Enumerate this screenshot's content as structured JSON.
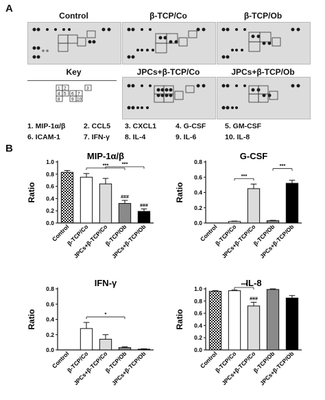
{
  "panel_a_label": "A",
  "panel_b_label": "B",
  "blots": [
    {
      "title": "Control"
    },
    {
      "title": "β-TCP/Co"
    },
    {
      "title": "β-TCP/Ob"
    },
    {
      "title": "Key"
    },
    {
      "title": "JPCs+β-TCP/Co"
    },
    {
      "title": "JPCs+β-TCP/Ob"
    }
  ],
  "key_labels": [
    "1",
    "2",
    "3",
    "4",
    "5",
    "6",
    "7",
    "8",
    "9",
    "10"
  ],
  "legend": [
    [
      "1. MIP-1α/β",
      "2. CCL5",
      "3. CXCL1",
      "4. G-CSF",
      "5. GM-CSF"
    ],
    [
      "6. ICAM-1",
      "7. IFN-γ",
      "8. IL-4",
      "9. IL-6",
      "10. IL-8"
    ]
  ],
  "chart_data": [
    {
      "type": "bar",
      "title": "MIP-1α/β",
      "ylabel": "Ratio",
      "ylim": [
        0,
        1.0
      ],
      "yticks": [
        "0.0",
        "0.2",
        "0.4",
        "0.6",
        "0.8",
        "1.0"
      ],
      "categories": [
        "Control",
        "β-TCP/Co",
        "JPCs+β-TCP/Co",
        "β-TCP/Ob",
        "JPCs+β-TCP/Ob"
      ],
      "values": [
        0.83,
        0.75,
        0.64,
        0.32,
        0.19
      ],
      "errors": [
        0.03,
        0.06,
        0.09,
        0.05,
        0.04
      ],
      "annotations": [
        "",
        "",
        "",
        "###",
        "###"
      ],
      "significance": [
        {
          "from": 1,
          "to": 3,
          "label": "***"
        },
        {
          "from": 2,
          "to": 4,
          "label": "***"
        }
      ]
    },
    {
      "type": "bar",
      "title": "G-CSF",
      "ylabel": "Ratio",
      "ylim": [
        0,
        0.8
      ],
      "yticks": [
        "0.0",
        "0.2",
        "0.4",
        "0.6",
        "0.8"
      ],
      "categories": [
        "Control",
        "β-TCP/Co",
        "JPCs+β-TCP/Co",
        "β-TCP/Ob",
        "JPCs+β-TCP/Ob"
      ],
      "values": [
        0.0,
        0.02,
        0.45,
        0.03,
        0.52
      ],
      "errors": [
        0.0,
        0.005,
        0.06,
        0.005,
        0.04
      ],
      "annotations": [
        "",
        "",
        "",
        "",
        ""
      ],
      "significance": [
        {
          "from": 1,
          "to": 2,
          "label": "***"
        },
        {
          "from": 3,
          "to": 4,
          "label": "***"
        }
      ]
    },
    {
      "type": "bar",
      "title": "IFN-γ",
      "ylabel": "Ratio",
      "ylim": [
        0,
        0.8
      ],
      "yticks": [
        "0.0",
        "0.2",
        "0.4",
        "0.6",
        "0.8"
      ],
      "categories": [
        "Control",
        "β-TCP/Co",
        "JPCs+β-TCP/Co",
        "β-TCP/Ob",
        "JPCs+β-TCP/Ob"
      ],
      "values": [
        0.0,
        0.28,
        0.14,
        0.03,
        0.01
      ],
      "errors": [
        0.0,
        0.08,
        0.06,
        0.01,
        0.005
      ],
      "annotations": [
        "",
        "",
        "",
        "",
        ""
      ],
      "significance": [
        {
          "from": 1,
          "to": 3,
          "label": "*"
        }
      ]
    },
    {
      "type": "bar",
      "title": "IL-8",
      "ylabel": "Ratio",
      "ylim": [
        0,
        1.0
      ],
      "yticks": [
        "0.0",
        "0.2",
        "0.4",
        "0.6",
        "0.8",
        "1.0"
      ],
      "categories": [
        "Control",
        "β-TCP/Co",
        "JPCs+β-TCP/Co",
        "β-TCP/Ob",
        "JPCs+β-TCP/Ob"
      ],
      "values": [
        0.96,
        0.97,
        0.72,
        0.99,
        0.85
      ],
      "errors": [
        0.01,
        0.01,
        0.06,
        0.01,
        0.04
      ],
      "annotations": [
        "",
        "",
        "###",
        "",
        ""
      ],
      "significance": [
        {
          "from": 1,
          "to": 2,
          "label": "***"
        }
      ]
    }
  ]
}
